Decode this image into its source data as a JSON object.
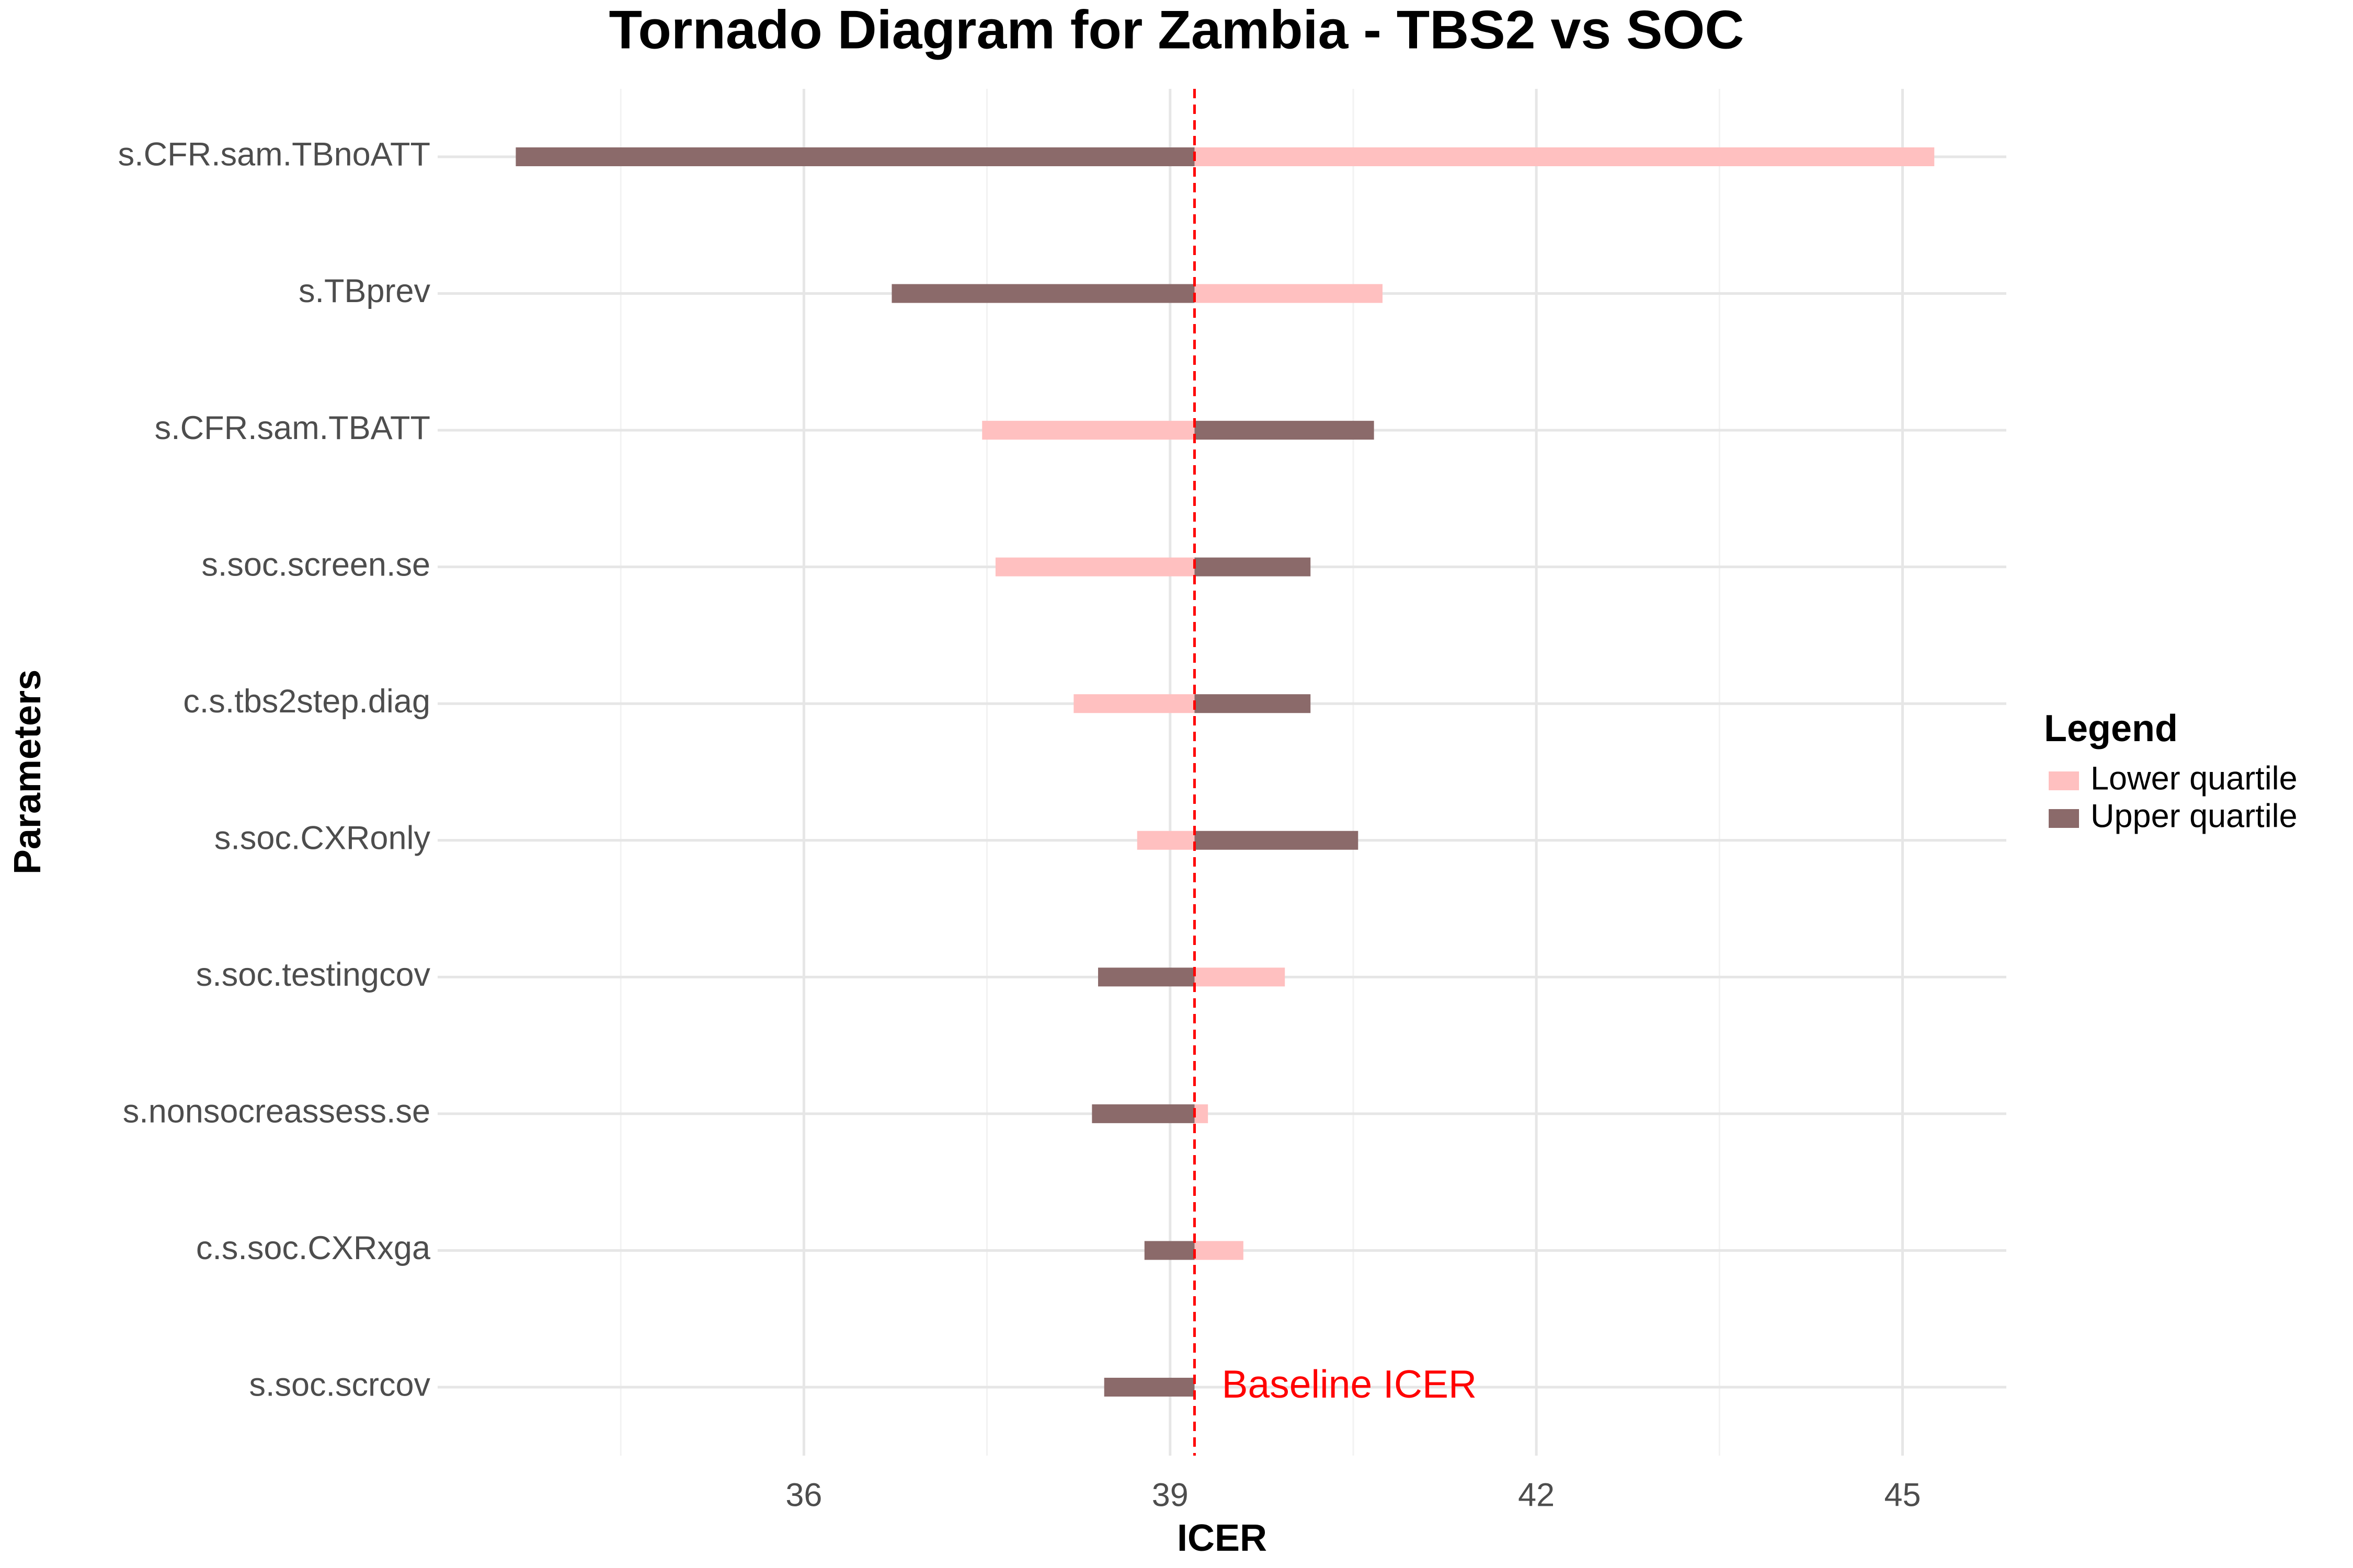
{
  "chart_data": {
    "type": "tornado",
    "title": "Tornado Diagram for Zambia - TBS2 vs SOC",
    "x_label": "ICER",
    "y_label": "Parameters",
    "categories": [
      "s.CFR.sam.TBnoATT",
      "s.TBprev",
      "s.CFR.sam.TBATT",
      "s.soc.screen.se",
      "c.s.tbs2step.diag",
      "s.soc.CXRonly",
      "s.soc.testingcov",
      "s.nonsocreassess.se",
      "c.s.soc.CXRxga",
      "s.soc.scrcov"
    ],
    "baseline": 39.2,
    "baseline_label": "Baseline ICER",
    "baseline_color": "#ff0000",
    "series": [
      {
        "name": "Lower quartile",
        "color": "#ffc0c0",
        "values": [
          45.26,
          40.74,
          37.46,
          37.57,
          38.21,
          38.73,
          39.94,
          39.31,
          39.6,
          39.2
        ]
      },
      {
        "name": "Upper quartile",
        "color": "#8b6a6a",
        "values": [
          33.64,
          36.72,
          40.67,
          40.15,
          40.15,
          40.54,
          38.41,
          38.36,
          38.79,
          38.46
        ]
      }
    ],
    "xlim": [
      33,
      45.85
    ],
    "xticks": [
      36,
      39,
      42,
      45
    ],
    "grid": true,
    "legend_title": "Legend",
    "legend_position": "right"
  }
}
